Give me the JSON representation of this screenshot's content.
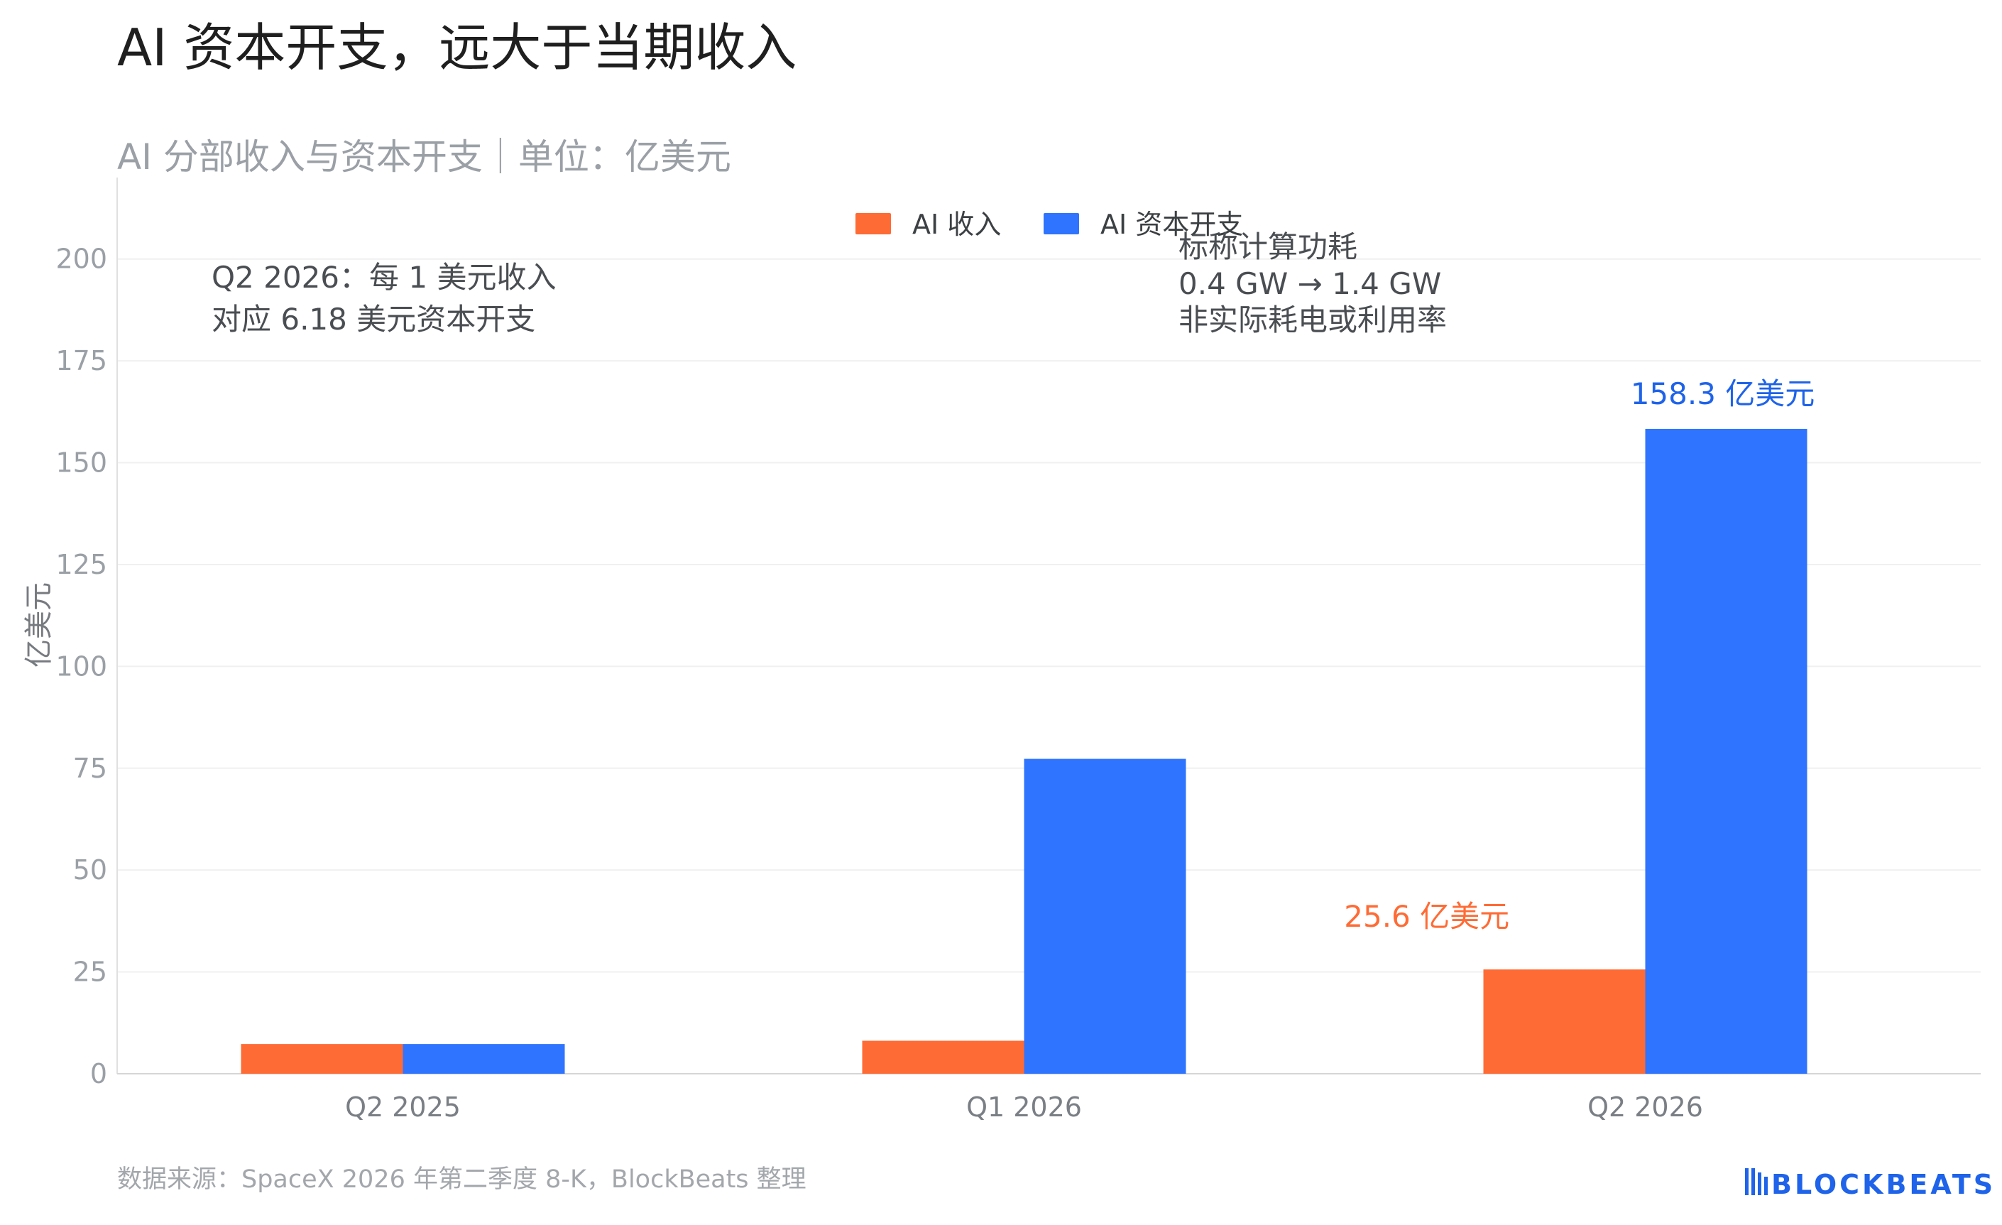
{
  "title": "AI 资本开支，远大于当期收入",
  "subtitle": "AI 分部收入与资本开支｜单位：亿美元",
  "source": "数据来源：SpaceX 2026 年第二季度 8-K，BlockBeats 整理",
  "brand": "BLOCKBEATS",
  "colors": {
    "revenue": "#ff6b35",
    "capex": "#2f74ff",
    "brand": "#1e63e9"
  },
  "chart_data": {
    "type": "bar",
    "categories": [
      "Q2 2025",
      "Q1 2026",
      "Q2 2026"
    ],
    "series": [
      {
        "name": "AI 收入",
        "values": [
          7.3,
          8.1,
          25.6
        ]
      },
      {
        "name": "AI 资本开支",
        "values": [
          7.3,
          77.3,
          158.3
        ]
      }
    ],
    "ylabel": "亿美元",
    "ylim": [
      0,
      220
    ],
    "yticks": [
      0,
      25,
      50,
      75,
      100,
      125,
      150,
      175,
      200
    ],
    "grid": true,
    "legend": "top-center",
    "data_labels": {
      "revenue_q2_2026": "25.6 亿美元",
      "capex_q2_2026": "158.3 亿美元"
    },
    "annotations": {
      "ratio": [
        "Q2 2026：每 1 美元收入",
        "对应 6.18 美元资本开支"
      ],
      "power": [
        "标称计算功耗",
        "0.4 GW → 1.4 GW",
        "非实际耗电或利用率"
      ]
    }
  }
}
